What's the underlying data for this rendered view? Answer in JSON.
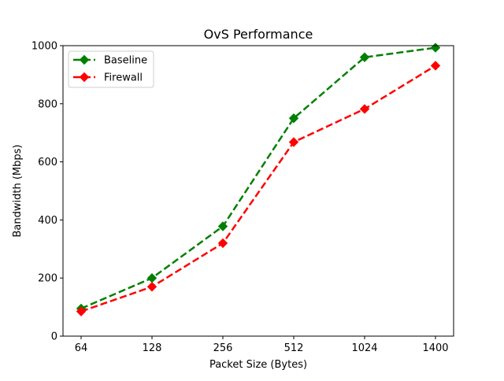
{
  "chart_data": {
    "type": "line",
    "title": "OvS Performance",
    "xlabel": "Packet Size (Bytes)",
    "ylabel": "Bandwidth (Mbps)",
    "categories": [
      "64",
      "128",
      "256",
      "512",
      "1024",
      "1400"
    ],
    "ylim": [
      0,
      1000
    ],
    "yticks": [
      0,
      200,
      400,
      600,
      800,
      1000
    ],
    "grid": false,
    "legend_position": "top-left",
    "series": [
      {
        "name": "Baseline",
        "color": "#008000",
        "marker": "diamond",
        "line_style": "dashed",
        "values": [
          95,
          200,
          378,
          750,
          960,
          993
        ]
      },
      {
        "name": "Firewall",
        "color": "#ff0000",
        "marker": "diamond",
        "line_style": "dashed",
        "values": [
          85,
          170,
          320,
          668,
          782,
          931
        ]
      }
    ]
  }
}
